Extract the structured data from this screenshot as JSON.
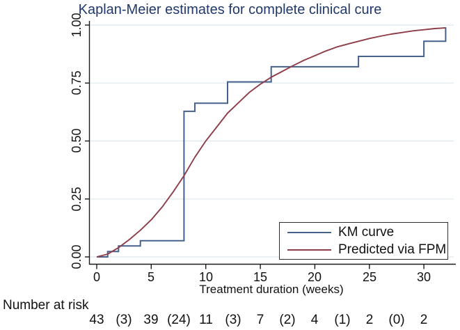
{
  "chart_data": {
    "type": "line",
    "title": "Kaplan-Meier estimates for complete clinical cure",
    "xlabel": "Treatment duration (weeks)",
    "ylabel": "",
    "xlim": [
      0,
      32
    ],
    "ylim": [
      0,
      1
    ],
    "grid": true,
    "x_ticks": [
      0,
      5,
      10,
      15,
      20,
      25,
      30
    ],
    "x_tick_labels": [
      "0",
      "5",
      "10",
      "15",
      "20",
      "25",
      "30"
    ],
    "y_ticks": [
      0,
      0.25,
      0.5,
      0.75,
      1
    ],
    "y_tick_labels": [
      "0.00",
      "0.25",
      "0.50",
      "0.75",
      "1.00"
    ],
    "legend_position": "inside-bottom-right",
    "series": [
      {
        "name": "KM curve",
        "style": "step",
        "color": "#46628c",
        "points": [
          [
            0,
            0
          ],
          [
            1,
            0.023
          ],
          [
            2,
            0.047
          ],
          [
            4,
            0.07
          ],
          [
            8,
            0.628
          ],
          [
            9,
            0.663
          ],
          [
            12,
            0.755
          ],
          [
            16,
            0.82
          ],
          [
            24,
            0.865
          ],
          [
            30,
            0.93
          ],
          [
            32,
            0.99
          ]
        ]
      },
      {
        "name": "Predicted via FPM",
        "style": "smooth",
        "color": "#8e3d48",
        "points": [
          [
            0,
            0
          ],
          [
            1,
            0.012
          ],
          [
            2,
            0.04
          ],
          [
            3,
            0.075
          ],
          [
            4,
            0.115
          ],
          [
            5,
            0.16
          ],
          [
            6,
            0.215
          ],
          [
            7,
            0.28
          ],
          [
            8,
            0.35
          ],
          [
            9,
            0.43
          ],
          [
            10,
            0.5
          ],
          [
            11,
            0.56
          ],
          [
            12,
            0.62
          ],
          [
            13,
            0.665
          ],
          [
            14,
            0.71
          ],
          [
            15,
            0.745
          ],
          [
            16,
            0.775
          ],
          [
            17,
            0.8
          ],
          [
            18,
            0.825
          ],
          [
            19,
            0.848
          ],
          [
            20,
            0.868
          ],
          [
            21,
            0.888
          ],
          [
            22,
            0.905
          ],
          [
            23,
            0.918
          ],
          [
            24,
            0.93
          ],
          [
            25,
            0.942
          ],
          [
            26,
            0.952
          ],
          [
            27,
            0.961
          ],
          [
            28,
            0.968
          ],
          [
            29,
            0.975
          ],
          [
            30,
            0.98
          ],
          [
            31,
            0.985
          ],
          [
            32,
            0.988
          ]
        ]
      }
    ],
    "legend": [
      {
        "label": "KM curve",
        "color": "#46628c"
      },
      {
        "label": "Predicted via FPM",
        "color": "#8e3d48"
      }
    ],
    "risk_table": {
      "label": "Number at risk",
      "entries": [
        {
          "week": 0,
          "text": "43"
        },
        {
          "week": 2.5,
          "text": "(3)"
        },
        {
          "week": 5,
          "text": "39"
        },
        {
          "week": 7.5,
          "text": "(24)"
        },
        {
          "week": 10,
          "text": "11"
        },
        {
          "week": 12.5,
          "text": "(3)"
        },
        {
          "week": 15,
          "text": "7"
        },
        {
          "week": 17.5,
          "text": "(2)"
        },
        {
          "week": 20,
          "text": "4"
        },
        {
          "week": 22.5,
          "text": "(1)"
        },
        {
          "week": 25,
          "text": "2"
        },
        {
          "week": 27.5,
          "text": "(0)"
        },
        {
          "week": 30,
          "text": "2"
        }
      ]
    },
    "colors": {
      "title": "#20386a",
      "gridline": "#dde8ee",
      "axis": "#1a1a1a",
      "text": "#111111",
      "background": "#ffffff"
    }
  }
}
